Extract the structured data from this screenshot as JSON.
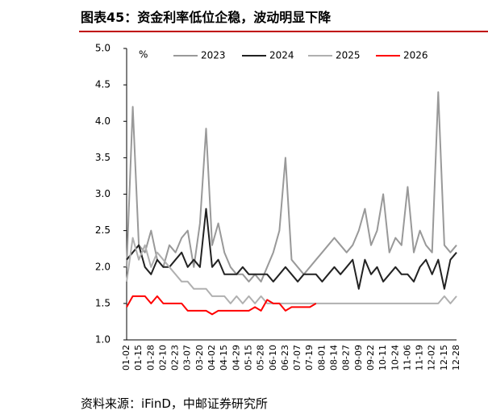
{
  "header": {
    "title": "图表45：资金利率低位企稳，波动明显下降"
  },
  "chart_data": {
    "type": "line",
    "unit": "%",
    "categories": [
      "01-02",
      null,
      "01-15",
      null,
      "01-28",
      null,
      "02-10",
      null,
      "02-23",
      null,
      "03-07",
      null,
      "03-20",
      null,
      "04-02",
      null,
      "04-15",
      null,
      "04-29",
      null,
      "05-15",
      null,
      "05-28",
      null,
      "06-10",
      null,
      "06-23",
      null,
      "07-07",
      null,
      "07-19",
      null,
      "08-01",
      null,
      "08-14",
      null,
      "08-27",
      null,
      "09-09",
      null,
      "09-22",
      null,
      "10-11",
      null,
      "10-24",
      null,
      "11-06",
      null,
      "11-19",
      null,
      "12-02",
      null,
      "12-15",
      null,
      "12-28"
    ],
    "series": [
      {
        "name": "2023",
        "color": "#999999",
        "values": [
          2.0,
          4.2,
          2.3,
          2.2,
          2.5,
          2.1,
          2.0,
          2.3,
          2.2,
          2.4,
          2.5,
          2.0,
          2.6,
          3.9,
          2.3,
          2.6,
          2.2,
          2.0,
          1.9,
          1.9,
          1.8,
          1.9,
          1.8,
          2.0,
          2.2,
          2.5,
          3.5,
          2.1,
          2.0,
          1.9,
          2.0,
          2.1,
          2.2,
          2.3,
          2.4,
          2.3,
          2.2,
          2.3,
          2.5,
          2.8,
          2.3,
          2.5,
          3.0,
          2.2,
          2.4,
          2.3,
          3.1,
          2.2,
          2.5,
          2.3,
          2.2,
          4.4,
          2.3,
          2.2,
          2.3
        ]
      },
      {
        "name": "2024",
        "color": "#222222",
        "values": [
          2.1,
          2.2,
          2.3,
          2.0,
          1.9,
          2.1,
          2.0,
          2.0,
          2.1,
          2.2,
          2.0,
          2.1,
          2.0,
          2.8,
          2.0,
          2.1,
          1.9,
          1.9,
          1.9,
          2.0,
          1.9,
          1.9,
          1.9,
          1.9,
          1.8,
          1.9,
          2.0,
          1.9,
          1.8,
          1.9,
          1.9,
          1.9,
          1.8,
          1.9,
          2.0,
          1.9,
          2.0,
          2.1,
          1.7,
          2.1,
          1.9,
          2.0,
          1.8,
          1.9,
          2.0,
          1.9,
          1.9,
          1.8,
          2.0,
          2.1,
          1.9,
          2.1,
          1.7,
          2.1,
          2.2
        ]
      },
      {
        "name": "2025",
        "color": "#b0b0b0",
        "values": [
          1.8,
          2.4,
          2.1,
          2.3,
          2.0,
          2.2,
          2.1,
          2.0,
          1.9,
          1.8,
          1.8,
          1.7,
          1.7,
          1.7,
          1.6,
          1.6,
          1.6,
          1.5,
          1.6,
          1.5,
          1.6,
          1.5,
          1.6,
          1.5,
          1.5,
          1.5,
          1.5,
          1.5,
          1.5,
          1.5,
          1.5,
          1.5,
          1.5,
          1.5,
          1.5,
          1.5,
          1.5,
          1.5,
          1.5,
          1.5,
          1.5,
          1.5,
          1.5,
          1.5,
          1.5,
          1.5,
          1.5,
          1.5,
          1.5,
          1.5,
          1.5,
          1.5,
          1.6,
          1.5,
          1.6
        ]
      },
      {
        "name": "2026",
        "color": "#ff0000",
        "values": [
          1.45,
          1.6,
          1.6,
          1.6,
          1.5,
          1.6,
          1.5,
          1.5,
          1.5,
          1.5,
          1.4,
          1.4,
          1.4,
          1.4,
          1.35,
          1.4,
          1.4,
          1.4,
          1.4,
          1.4,
          1.4,
          1.45,
          1.4,
          1.55,
          1.5,
          1.5,
          1.4,
          1.45,
          1.45,
          1.45,
          1.45,
          1.5,
          null,
          null,
          null,
          null,
          null,
          null,
          null,
          null,
          null,
          null,
          null,
          null,
          null,
          null,
          null,
          null,
          null,
          null,
          null,
          null,
          null,
          null,
          null
        ]
      }
    ],
    "ylim": [
      1,
      5
    ],
    "yticks": [
      {
        "value": 1,
        "label": "1.0"
      },
      {
        "value": 1.5,
        "label": "1.5"
      },
      {
        "value": 2,
        "label": "2.0"
      },
      {
        "value": 2.5,
        "label": "2.5"
      },
      {
        "value": 3,
        "label": "3.0"
      },
      {
        "value": 3.5,
        "label": "3.5"
      },
      {
        "value": 4,
        "label": "4.0"
      },
      {
        "value": 4.5,
        "label": "4.5"
      },
      {
        "value": 5,
        "label": "5.0"
      }
    ],
    "grid": false
  },
  "footer": {
    "source": "资料来源：iFinD，中邮证券研究所"
  }
}
